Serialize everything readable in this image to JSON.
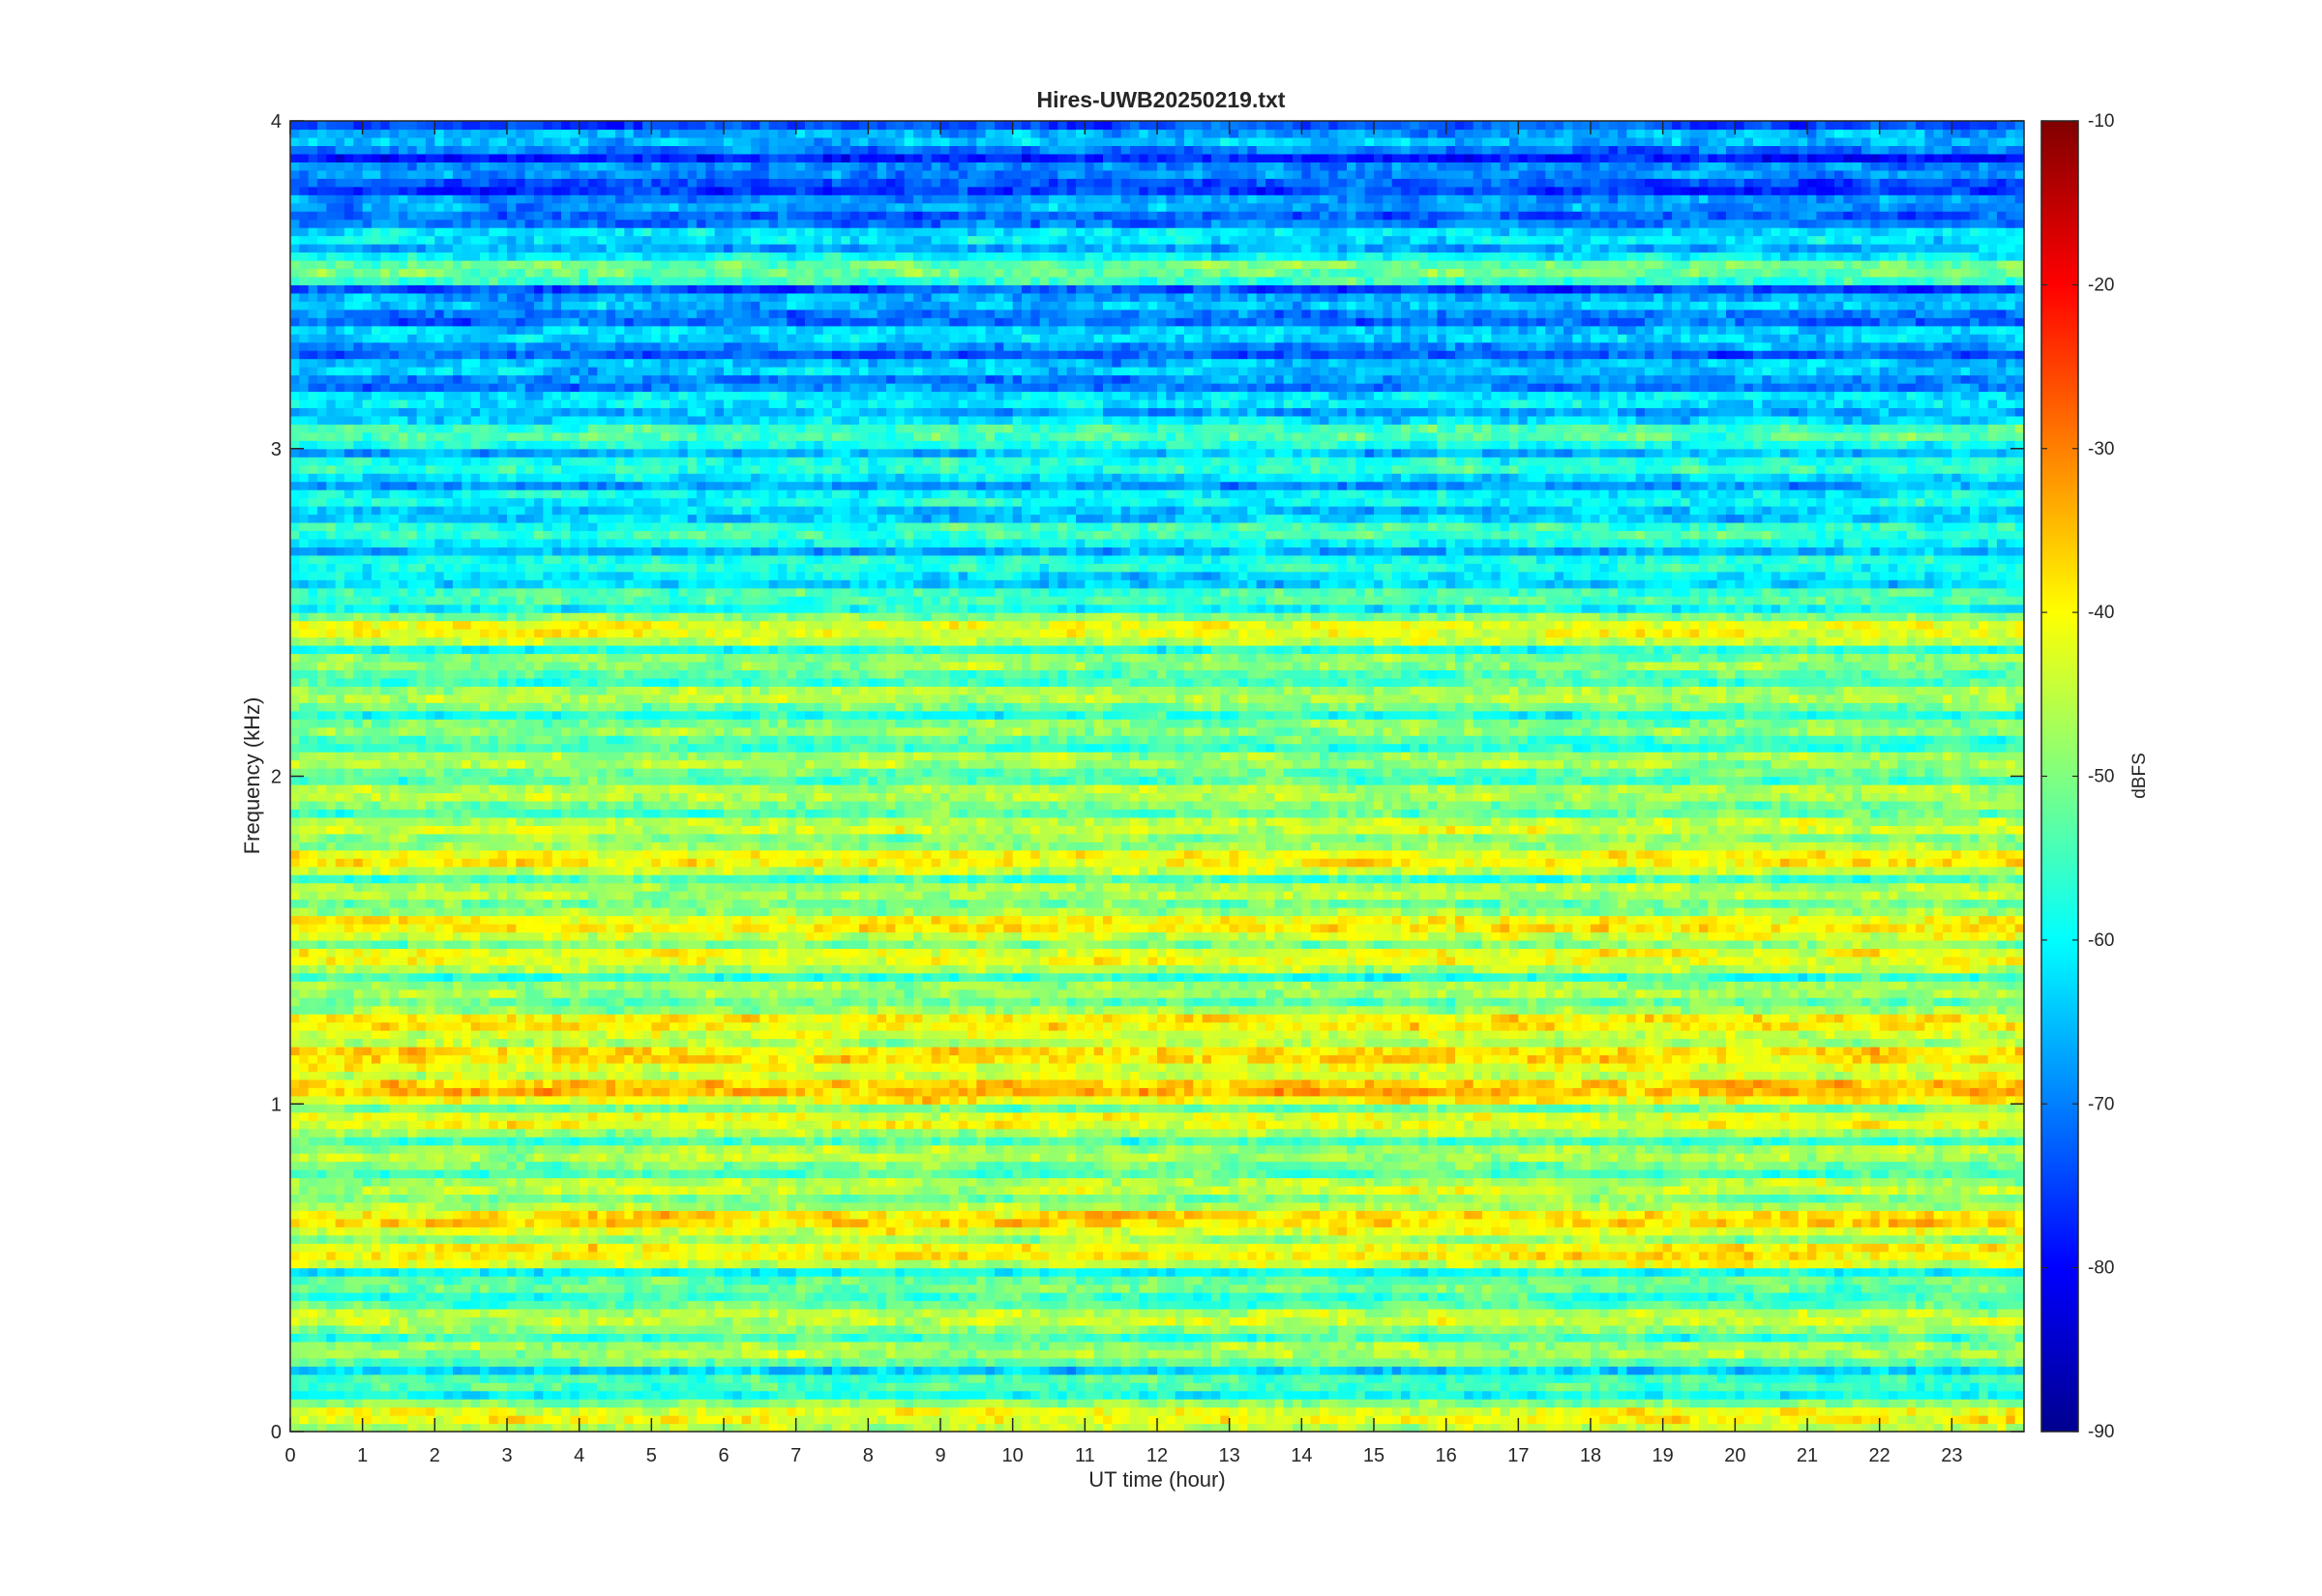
{
  "chart_data": {
    "type": "heatmap",
    "title": "Hires-UWB20250219.txt",
    "xlabel": "UT time (hour)",
    "ylabel": "Frequency (kHz)",
    "xlim": [
      0,
      24
    ],
    "ylim": [
      0,
      4
    ],
    "x_ticks": [
      "0",
      "1",
      "2",
      "3",
      "4",
      "5",
      "6",
      "7",
      "8",
      "9",
      "10",
      "11",
      "12",
      "13",
      "14",
      "15",
      "16",
      "17",
      "18",
      "19",
      "20",
      "21",
      "22",
      "23"
    ],
    "y_ticks": [
      "0",
      "1",
      "2",
      "3",
      "4"
    ],
    "colorbar": {
      "label": "dBFS",
      "range": [
        -90,
        -10
      ],
      "ticks": [
        "-10",
        "-20",
        "-30",
        "-40",
        "-50",
        "-60",
        "-70",
        "-80",
        "-90"
      ],
      "colormap": "jet"
    },
    "band_levels_dBFS": {
      "freq_kHz": [
        0.05,
        0.15,
        0.25,
        0.35,
        0.45,
        0.55,
        0.65,
        0.75,
        0.85,
        0.95,
        1.05,
        1.15,
        1.25,
        1.35,
        1.45,
        1.55,
        1.65,
        1.75,
        1.85,
        1.95,
        2.05,
        2.15,
        2.25,
        2.35,
        2.45,
        2.55,
        2.65,
        2.75,
        2.85,
        2.95,
        3.05,
        3.15,
        3.25,
        3.35,
        3.45,
        3.55,
        3.65,
        3.75,
        3.85,
        3.95
      ],
      "typical_level": [
        -42,
        -55,
        -48,
        -45,
        -52,
        -40,
        -38,
        -46,
        -47,
        -43,
        -36,
        -38,
        -40,
        -48,
        -42,
        -40,
        -47,
        -40,
        -45,
        -46,
        -48,
        -50,
        -47,
        -50,
        -42,
        -55,
        -58,
        -56,
        -60,
        -58,
        -55,
        -62,
        -65,
        -64,
        -66,
        -52,
        -62,
        -68,
        -70,
        -66
      ]
    }
  }
}
